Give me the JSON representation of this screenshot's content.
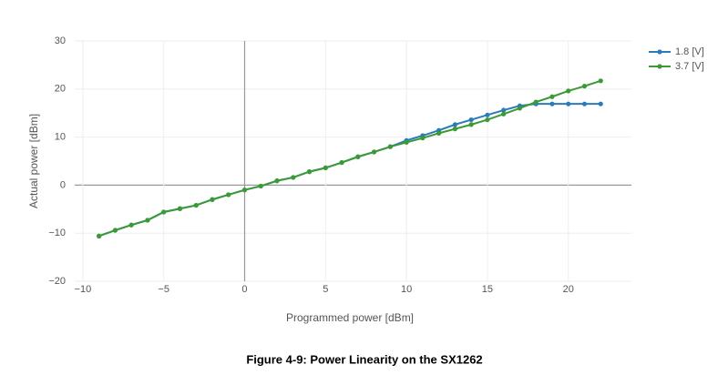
{
  "chart_data": {
    "type": "line",
    "caption": "Figure 4-9: Power Linearity on the SX1262",
    "x_label": "Programmed power [dBm]",
    "y_label": "Actual power [dBm]",
    "x": [
      -9,
      -8,
      -7,
      -6,
      -5,
      -4,
      -3,
      -2,
      -1,
      0,
      1,
      2,
      3,
      4,
      5,
      6,
      7,
      8,
      9,
      10,
      11,
      12,
      13,
      14,
      15,
      16,
      17,
      18,
      19,
      20,
      21,
      22
    ],
    "series": [
      {
        "name": "1.8 [V]",
        "color": "#2b7bb9",
        "values": [
          -10.6,
          -9.4,
          -8.3,
          -7.3,
          -5.6,
          -4.9,
          -4.2,
          -3.0,
          -2.0,
          -1.0,
          -0.2,
          0.9,
          1.6,
          2.8,
          3.6,
          4.7,
          5.9,
          6.9,
          8.0,
          9.3,
          10.3,
          11.4,
          12.6,
          13.6,
          14.6,
          15.6,
          16.5,
          16.9,
          16.9,
          16.9,
          16.9,
          16.9
        ]
      },
      {
        "name": "3.7 [V]",
        "color": "#3c9a35",
        "values": [
          -10.6,
          -9.4,
          -8.3,
          -7.3,
          -5.6,
          -4.9,
          -4.2,
          -3.0,
          -2.0,
          -1.0,
          -0.2,
          0.9,
          1.6,
          2.8,
          3.6,
          4.7,
          5.9,
          6.9,
          8.0,
          8.9,
          9.8,
          10.8,
          11.7,
          12.6,
          13.6,
          14.8,
          16.0,
          17.3,
          18.4,
          19.6,
          20.6,
          21.7
        ]
      }
    ],
    "xlim": [
      -10.5,
      23.9
    ],
    "ylim": [
      -20,
      30
    ],
    "xticks": [
      {
        "value": -10,
        "label": "−10"
      },
      {
        "value": -5,
        "label": "−5"
      },
      0,
      5,
      10,
      15,
      20
    ],
    "yticks": [
      {
        "value": -20,
        "label": "−20"
      },
      {
        "value": -10,
        "label": "−10"
      },
      0,
      10,
      20,
      30
    ],
    "grid": true,
    "legend": "top-right"
  }
}
